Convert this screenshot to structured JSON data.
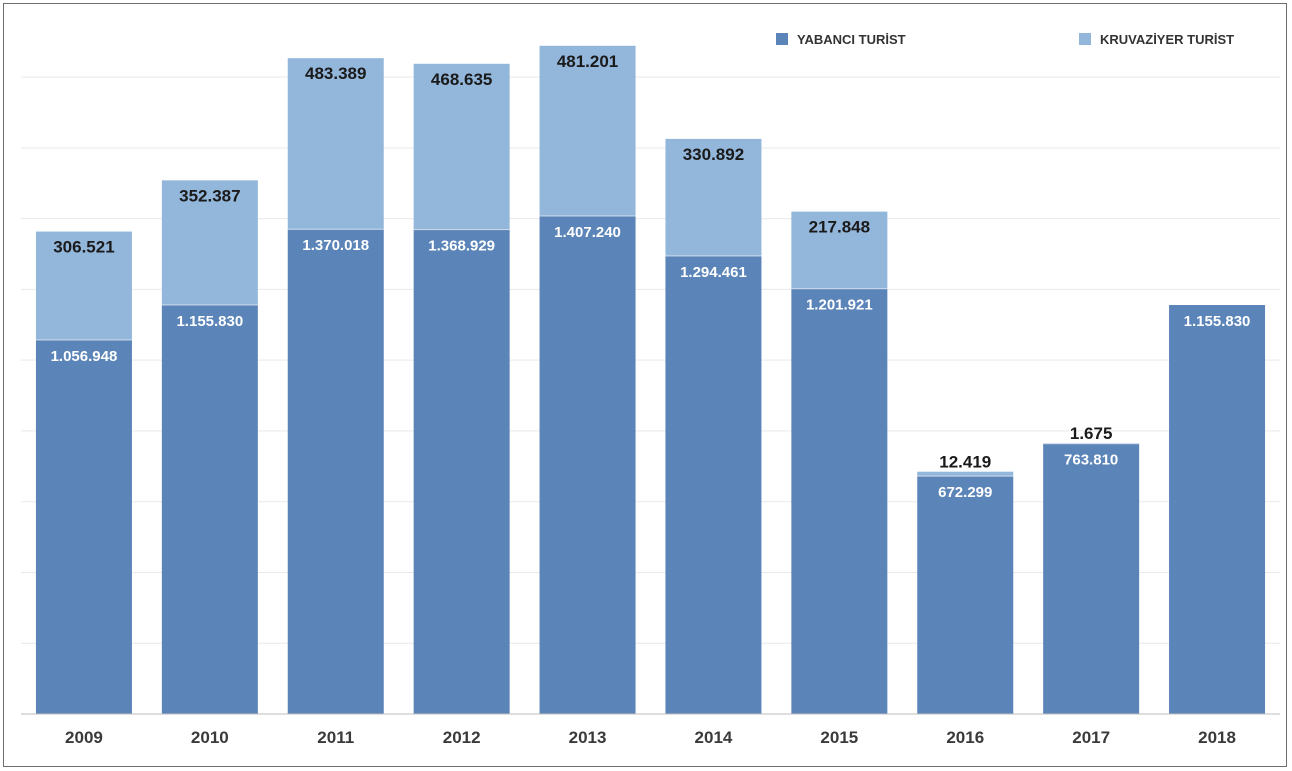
{
  "chart_data": {
    "type": "bar",
    "stacked": true,
    "title": "",
    "xlabel": "",
    "ylabel": "",
    "ylim": [
      0,
      1950000
    ],
    "grid": true,
    "legend_position": "top-right",
    "categories": [
      "2009",
      "2010",
      "2011",
      "2012",
      "2013",
      "2014",
      "2015",
      "2016",
      "2017",
      "2018"
    ],
    "series": [
      {
        "name": "YABANCI TURİST",
        "color": "#5b84b8",
        "values": [
          1056948,
          1155830,
          1370018,
          1368929,
          1407240,
          1294461,
          1201921,
          672299,
          763810,
          1155830
        ],
        "labels": [
          "1.056.948",
          "1.155.830",
          "1.370.018",
          "1.368.929",
          "1.407.240",
          "1.294.461",
          "1.201.921",
          "672.299",
          "763.810",
          "1.155.830"
        ]
      },
      {
        "name": "KRUVAZİYER TURİST",
        "color": "#93b7db",
        "values": [
          306521,
          352387,
          483389,
          468635,
          481201,
          330892,
          217848,
          12419,
          1675,
          0
        ],
        "labels": [
          "306.521",
          "352.387",
          "483.389",
          "468.635",
          "481.201",
          "330.892",
          "217.848",
          "12.419",
          "1.675",
          ""
        ]
      }
    ]
  }
}
